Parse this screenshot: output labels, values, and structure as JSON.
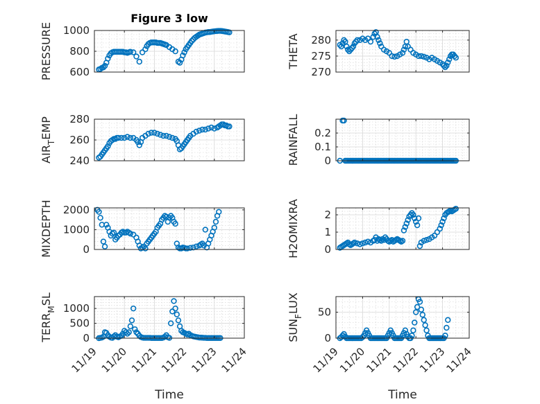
{
  "figure": {
    "title": "Figure 3 low",
    "marker_color": "#0072BD"
  },
  "chart_data": [
    {
      "type": "scatter",
      "ylabel": "PRESSURE",
      "ylabel_sub": "",
      "ylabel_tail": "",
      "title": "Figure 3 low",
      "xlabel": "",
      "xlim": [
        "11/19",
        "11/24"
      ],
      "ylim": [
        600,
        1000
      ],
      "yticks": [
        "600",
        "800",
        "1000"
      ],
      "ytick_values": [
        600,
        800,
        1000
      ],
      "xticks": [],
      "grid": true,
      "x": [
        0.15,
        0.2,
        0.25,
        0.3,
        0.35,
        0.4,
        0.45,
        0.5,
        0.55,
        0.6,
        0.65,
        0.7,
        0.75,
        0.8,
        0.85,
        0.9,
        0.95,
        1.0,
        1.05,
        1.1,
        1.15,
        1.2,
        1.3,
        1.4,
        1.5,
        1.6,
        1.7,
        1.75,
        1.8,
        1.85,
        1.9,
        1.95,
        2.0,
        2.05,
        2.1,
        2.15,
        2.2,
        2.25,
        2.3,
        2.35,
        2.4,
        2.5,
        2.6,
        2.7,
        2.8,
        2.85,
        2.9,
        2.95,
        3.0,
        3.05,
        3.1,
        3.15,
        3.2,
        3.25,
        3.3,
        3.35,
        3.4,
        3.45,
        3.5,
        3.55,
        3.6,
        3.65,
        3.7,
        3.75,
        3.8,
        3.85,
        3.9,
        3.95,
        4.0,
        4.05,
        4.1,
        4.15,
        4.2,
        4.25,
        4.3,
        4.35,
        4.4,
        4.45,
        4.5
      ],
      "y": [
        625,
        630,
        640,
        645,
        660,
        690,
        730,
        760,
        780,
        790,
        795,
        795,
        795,
        795,
        795,
        795,
        795,
        790,
        790,
        785,
        790,
        795,
        790,
        750,
        700,
        790,
        820,
        850,
        870,
        880,
        885,
        885,
        885,
        885,
        880,
        880,
        880,
        875,
        870,
        865,
        860,
        840,
        820,
        800,
        700,
        690,
        720,
        760,
        790,
        820,
        840,
        860,
        880,
        900,
        915,
        930,
        940,
        950,
        960,
        965,
        970,
        975,
        980,
        982,
        985,
        985,
        988,
        990,
        992,
        994,
        995,
        996,
        996,
        995,
        993,
        990,
        988,
        985,
        982
      ]
    },
    {
      "type": "scatter",
      "ylabel": "THETA",
      "ylabel_sub": "",
      "ylabel_tail": "",
      "title": "",
      "xlabel": "",
      "xlim": [
        "11/19",
        "11/24"
      ],
      "ylim": [
        270,
        283
      ],
      "yticks": [
        "270",
        "275",
        "280"
      ],
      "ytick_values": [
        270,
        275,
        280
      ],
      "xticks": [],
      "grid": true,
      "x": [
        0.15,
        0.2,
        0.25,
        0.3,
        0.35,
        0.4,
        0.45,
        0.5,
        0.55,
        0.6,
        0.65,
        0.7,
        0.75,
        0.8,
        0.9,
        1.0,
        1.1,
        1.2,
        1.3,
        1.4,
        1.45,
        1.5,
        1.55,
        1.6,
        1.65,
        1.7,
        1.8,
        1.9,
        2.0,
        2.1,
        2.2,
        2.3,
        2.4,
        2.5,
        2.55,
        2.6,
        2.65,
        2.7,
        2.8,
        2.9,
        3.0,
        3.1,
        3.2,
        3.3,
        3.4,
        3.5,
        3.6,
        3.7,
        3.8,
        3.9,
        4.0,
        4.05,
        4.1,
        4.15,
        4.2,
        4.25,
        4.3,
        4.35,
        4.4,
        4.45,
        4.5
      ],
      "y": [
        278.5,
        278,
        279,
        280,
        279.5,
        278,
        277,
        276.5,
        277,
        277.5,
        278,
        279,
        279.5,
        280,
        280,
        280.5,
        280,
        280.5,
        279.5,
        281,
        282,
        282.5,
        281,
        280,
        279,
        278,
        277,
        276.5,
        276,
        275,
        274.8,
        275,
        275.5,
        276,
        277,
        278,
        279.5,
        278,
        277,
        276,
        275.5,
        275,
        275,
        274.8,
        274.5,
        274,
        274.5,
        274,
        273.5,
        273,
        272.5,
        272,
        271.5,
        272,
        273,
        274,
        275,
        275.5,
        275.5,
        275,
        274.5
      ]
    },
    {
      "type": "scatter",
      "ylabel": "AIR",
      "ylabel_sub": "T",
      "ylabel_tail": "EMP",
      "title": "",
      "xlabel": "",
      "xlim": [
        "11/19",
        "11/24"
      ],
      "ylim": [
        240,
        280
      ],
      "yticks": [
        "240",
        "260",
        "280"
      ],
      "ytick_values": [
        240,
        260,
        280
      ],
      "xticks": [],
      "grid": true,
      "x": [
        0.15,
        0.2,
        0.25,
        0.3,
        0.35,
        0.4,
        0.45,
        0.5,
        0.55,
        0.6,
        0.65,
        0.7,
        0.75,
        0.8,
        0.9,
        1.0,
        1.1,
        1.2,
        1.3,
        1.4,
        1.45,
        1.5,
        1.55,
        1.6,
        1.7,
        1.8,
        1.9,
        2.0,
        2.1,
        2.2,
        2.3,
        2.4,
        2.5,
        2.6,
        2.7,
        2.75,
        2.8,
        2.85,
        2.9,
        2.95,
        3.0,
        3.05,
        3.1,
        3.15,
        3.2,
        3.3,
        3.4,
        3.5,
        3.6,
        3.7,
        3.8,
        3.9,
        4.0,
        4.1,
        4.15,
        4.2,
        4.25,
        4.3,
        4.35,
        4.4,
        4.45,
        4.5
      ],
      "y": [
        243,
        244,
        246,
        248,
        250,
        252,
        254,
        257,
        259,
        260,
        261,
        261,
        262,
        262,
        262,
        262,
        263,
        262,
        262,
        260,
        258,
        255,
        258,
        262,
        264,
        266,
        267,
        267,
        266,
        265,
        264,
        264,
        263,
        262,
        261,
        259,
        255,
        251,
        252,
        254,
        256,
        258,
        260,
        262,
        264,
        266,
        268,
        269,
        270,
        270,
        271,
        272,
        271,
        272,
        273,
        274,
        275,
        275,
        274,
        274,
        273,
        273
      ]
    },
    {
      "type": "scatter",
      "ylabel": "RAINFALL",
      "ylabel_sub": "",
      "ylabel_tail": "",
      "title": "",
      "xlabel": "",
      "xlim": [
        "11/19",
        "11/24"
      ],
      "ylim": [
        0,
        0.3
      ],
      "yticks": [
        "0",
        "0.1",
        "0.2"
      ],
      "ytick_values": [
        0,
        0.1,
        0.2
      ],
      "xticks": [],
      "grid": true,
      "x": [
        0.15,
        0.25,
        0.3,
        0.35,
        0.4,
        0.45,
        0.5,
        0.55,
        0.6,
        0.65,
        0.7,
        0.75,
        0.8,
        0.85,
        0.9,
        0.95,
        1.0,
        1.05,
        1.1,
        1.15,
        1.2,
        1.25,
        1.3,
        1.35,
        1.4,
        1.45,
        1.5,
        1.55,
        1.6,
        1.65,
        1.7,
        1.75,
        1.8,
        1.85,
        1.9,
        1.95,
        2.0,
        2.05,
        2.1,
        2.15,
        2.2,
        2.25,
        2.3,
        2.35,
        2.4,
        2.45,
        2.5,
        2.55,
        2.6,
        2.65,
        2.7,
        2.75,
        2.8,
        2.85,
        2.9,
        2.95,
        3.0,
        3.05,
        3.1,
        3.15,
        3.2,
        3.25,
        3.3,
        3.35,
        3.4,
        3.45,
        3.5,
        3.55,
        3.6,
        3.65,
        3.7,
        3.75,
        3.8,
        3.85,
        3.9,
        3.95,
        4.0,
        4.05,
        4.1,
        4.15,
        4.2,
        4.25,
        4.3,
        4.35,
        4.4,
        4.45,
        4.5
      ],
      "y": [
        0,
        0.29,
        0.29,
        0,
        0,
        0,
        0,
        0,
        0,
        0,
        0,
        0,
        0,
        0,
        0,
        0,
        0,
        0,
        0,
        0,
        0,
        0,
        0,
        0,
        0,
        0,
        0,
        0,
        0,
        0,
        0,
        0,
        0,
        0,
        0,
        0,
        0,
        0,
        0,
        0,
        0,
        0,
        0,
        0,
        0,
        0,
        0,
        0,
        0,
        0,
        0,
        0,
        0,
        0,
        0,
        0,
        0,
        0,
        0,
        0,
        0,
        0,
        0,
        0,
        0,
        0,
        0,
        0,
        0,
        0,
        0,
        0,
        0,
        0,
        0,
        0,
        0,
        0,
        0,
        0,
        0,
        0,
        0,
        0,
        0,
        0,
        0
      ]
    },
    {
      "type": "scatter",
      "ylabel": "MIXDEPTH",
      "ylabel_sub": "",
      "ylabel_tail": "",
      "title": "",
      "xlabel": "",
      "xlim": [
        "11/19",
        "11/24"
      ],
      "ylim": [
        0,
        2100
      ],
      "yticks": [
        "0",
        "1000",
        "2000"
      ],
      "ytick_values": [
        0,
        1000,
        2000
      ],
      "xticks": [],
      "grid": true,
      "x": [
        0.1,
        0.15,
        0.2,
        0.25,
        0.3,
        0.35,
        0.4,
        0.45,
        0.5,
        0.55,
        0.6,
        0.65,
        0.7,
        0.75,
        0.8,
        0.85,
        0.9,
        0.95,
        1.0,
        1.05,
        1.1,
        1.15,
        1.2,
        1.3,
        1.4,
        1.45,
        1.5,
        1.55,
        1.6,
        1.65,
        1.7,
        1.75,
        1.8,
        1.85,
        1.9,
        1.95,
        2.0,
        2.05,
        2.1,
        2.15,
        2.2,
        2.25,
        2.3,
        2.35,
        2.4,
        2.45,
        2.5,
        2.55,
        2.6,
        2.65,
        2.7,
        2.75,
        2.8,
        2.85,
        2.9,
        2.95,
        3.0,
        3.05,
        3.1,
        3.2,
        3.3,
        3.4,
        3.5,
        3.55,
        3.6,
        3.65,
        3.7,
        3.75,
        3.8,
        3.85,
        3.9,
        3.95,
        4.0,
        4.05,
        4.1,
        4.15
      ],
      "y": [
        2000,
        1900,
        1600,
        1250,
        400,
        150,
        1250,
        1100,
        900,
        700,
        800,
        850,
        500,
        600,
        700,
        750,
        850,
        900,
        850,
        850,
        900,
        850,
        800,
        750,
        600,
        400,
        200,
        50,
        100,
        150,
        50,
        300,
        400,
        500,
        600,
        700,
        800,
        900,
        1100,
        1200,
        1300,
        1500,
        1600,
        1700,
        1650,
        1400,
        1600,
        1700,
        1600,
        1400,
        1300,
        300,
        100,
        50,
        50,
        100,
        80,
        50,
        50,
        80,
        100,
        150,
        200,
        250,
        300,
        200,
        1000,
        100,
        300,
        500,
        700,
        900,
        1100,
        1400,
        1700,
        1900
      ]
    },
    {
      "type": "scatter",
      "ylabel": "H2OMIXRA",
      "ylabel_sub": "",
      "ylabel_tail": "",
      "title": "",
      "xlabel": "",
      "xlim": [
        "11/19",
        "11/24"
      ],
      "ylim": [
        0,
        2.4
      ],
      "yticks": [
        "0",
        "1",
        "2"
      ],
      "ytick_values": [
        0,
        1,
        2
      ],
      "xticks": [],
      "grid": true,
      "x": [
        0.15,
        0.2,
        0.25,
        0.3,
        0.35,
        0.4,
        0.45,
        0.5,
        0.55,
        0.6,
        0.65,
        0.7,
        0.8,
        0.9,
        1.0,
        1.1,
        1.2,
        1.3,
        1.4,
        1.45,
        1.5,
        1.55,
        1.6,
        1.65,
        1.7,
        1.75,
        1.8,
        1.85,
        1.9,
        1.95,
        2.0,
        2.05,
        2.1,
        2.15,
        2.2,
        2.25,
        2.3,
        2.35,
        2.4,
        2.45,
        2.5,
        2.55,
        2.6,
        2.65,
        2.7,
        2.75,
        2.8,
        2.85,
        2.9,
        2.95,
        3.0,
        3.05,
        3.1,
        3.15,
        3.2,
        3.3,
        3.4,
        3.5,
        3.6,
        3.7,
        3.8,
        3.9,
        3.95,
        4.0,
        4.05,
        4.1,
        4.15,
        4.2,
        4.25,
        4.3,
        4.35,
        4.4,
        4.45,
        4.5
      ],
      "y": [
        0.1,
        0.15,
        0.2,
        0.25,
        0.3,
        0.35,
        0.4,
        0.3,
        0.25,
        0.3,
        0.35,
        0.4,
        0.35,
        0.3,
        0.35,
        0.4,
        0.45,
        0.4,
        0.5,
        0.55,
        0.7,
        0.5,
        0.6,
        0.55,
        0.5,
        0.6,
        0.55,
        0.7,
        0.6,
        0.5,
        0.45,
        0.5,
        0.55,
        0.45,
        0.5,
        0.55,
        0.6,
        0.55,
        0.5,
        0.45,
        0.5,
        1.1,
        1.3,
        1.5,
        1.7,
        1.9,
        2.0,
        2.1,
        2.0,
        1.8,
        1.6,
        1.4,
        1.8,
        0.2,
        0.4,
        0.5,
        0.55,
        0.6,
        0.7,
        0.8,
        1.0,
        1.2,
        1.4,
        1.6,
        1.8,
        2.0,
        2.1,
        2.15,
        2.2,
        2.25,
        2.2,
        2.25,
        2.3,
        2.35
      ]
    },
    {
      "type": "scatter",
      "ylabel": "TERR",
      "ylabel_sub": "M",
      "ylabel_tail": "SL",
      "title": "",
      "xlabel": "Time",
      "xlim": [
        "11/19",
        "11/24"
      ],
      "ylim": [
        0,
        1400
      ],
      "yticks": [
        "0",
        "500",
        "1000"
      ],
      "ytick_values": [
        0,
        500,
        1000
      ],
      "xticks": [
        "11/19",
        "11/20",
        "11/21",
        "11/22",
        "11/23",
        "11/24"
      ],
      "grid": true,
      "x": [
        0.15,
        0.2,
        0.25,
        0.3,
        0.35,
        0.4,
        0.45,
        0.5,
        0.55,
        0.6,
        0.65,
        0.7,
        0.75,
        0.8,
        0.85,
        0.9,
        0.95,
        1.0,
        1.05,
        1.1,
        1.15,
        1.2,
        1.25,
        1.3,
        1.35,
        1.4,
        1.45,
        1.5,
        1.55,
        1.6,
        1.65,
        1.7,
        1.75,
        1.8,
        1.85,
        1.9,
        1.95,
        2.0,
        2.05,
        2.1,
        2.15,
        2.2,
        2.25,
        2.3,
        2.35,
        2.4,
        2.45,
        2.5,
        2.55,
        2.6,
        2.65,
        2.7,
        2.75,
        2.8,
        2.85,
        2.9,
        2.95,
        3.0,
        3.05,
        3.1,
        3.15,
        3.2,
        3.25,
        3.3,
        3.35,
        3.4,
        3.45,
        3.5,
        3.55,
        3.6,
        3.65,
        3.7,
        3.75,
        3.8,
        3.85,
        3.9,
        3.95,
        4.0,
        4.05,
        4.1,
        4.15,
        4.2
      ],
      "y": [
        0,
        10,
        20,
        50,
        200,
        180,
        100,
        50,
        20,
        10,
        60,
        100,
        50,
        30,
        60,
        80,
        150,
        250,
        200,
        150,
        200,
        400,
        600,
        1000,
        300,
        200,
        150,
        80,
        40,
        20,
        10,
        10,
        10,
        10,
        10,
        5,
        5,
        5,
        5,
        5,
        5,
        5,
        5,
        20,
        50,
        100,
        30,
        10,
        500,
        900,
        1250,
        1000,
        800,
        600,
        400,
        250,
        200,
        180,
        150,
        120,
        150,
        100,
        80,
        60,
        50,
        40,
        30,
        20,
        20,
        15,
        10,
        10,
        5,
        5,
        5,
        5,
        5,
        5,
        5,
        5,
        5,
        5
      ]
    },
    {
      "type": "scatter",
      "ylabel": "SUN",
      "ylabel_sub": "F",
      "ylabel_tail": "LUX",
      "title": "",
      "xlabel": "Time",
      "xlim": [
        "11/19",
        "11/24"
      ],
      "ylim": [
        0,
        80
      ],
      "yticks": [
        "0",
        "50"
      ],
      "ytick_values": [
        0,
        50
      ],
      "xticks": [
        "11/19",
        "11/20",
        "11/21",
        "11/22",
        "11/23",
        "11/24"
      ],
      "grid": true,
      "x": [
        0.15,
        0.2,
        0.25,
        0.3,
        0.35,
        0.4,
        0.45,
        0.5,
        0.55,
        0.6,
        0.65,
        0.7,
        0.75,
        0.8,
        0.85,
        0.9,
        0.95,
        1.0,
        1.05,
        1.1,
        1.15,
        1.2,
        1.25,
        1.3,
        1.35,
        1.4,
        1.45,
        1.5,
        1.55,
        1.6,
        1.65,
        1.7,
        1.75,
        1.8,
        1.85,
        1.9,
        1.95,
        2.0,
        2.05,
        2.1,
        2.15,
        2.2,
        2.25,
        2.3,
        2.35,
        2.4,
        2.45,
        2.5,
        2.55,
        2.6,
        2.65,
        2.7,
        2.75,
        2.8,
        2.85,
        2.9,
        2.95,
        3.0,
        3.05,
        3.1,
        3.15,
        3.2,
        3.25,
        3.3,
        3.35,
        3.4,
        3.45,
        3.5,
        3.55,
        3.6,
        3.65,
        3.7,
        3.75,
        3.8,
        3.85,
        3.9,
        3.95,
        4.0,
        4.05,
        4.1,
        4.15,
        4.2
      ],
      "y": [
        0,
        2,
        5,
        8,
        3,
        0,
        0,
        0,
        0,
        0,
        0,
        0,
        0,
        0,
        0,
        0,
        0,
        2,
        5,
        10,
        15,
        10,
        5,
        0,
        0,
        0,
        0,
        0,
        0,
        0,
        0,
        0,
        0,
        0,
        0,
        0,
        5,
        10,
        15,
        10,
        5,
        0,
        0,
        0,
        0,
        0,
        0,
        5,
        10,
        15,
        8,
        3,
        0,
        0,
        5,
        15,
        30,
        50,
        60,
        75,
        70,
        55,
        45,
        35,
        25,
        15,
        5,
        0,
        0,
        0,
        0,
        0,
        0,
        0,
        0,
        0,
        0,
        0,
        0,
        5,
        20,
        35
      ]
    }
  ]
}
